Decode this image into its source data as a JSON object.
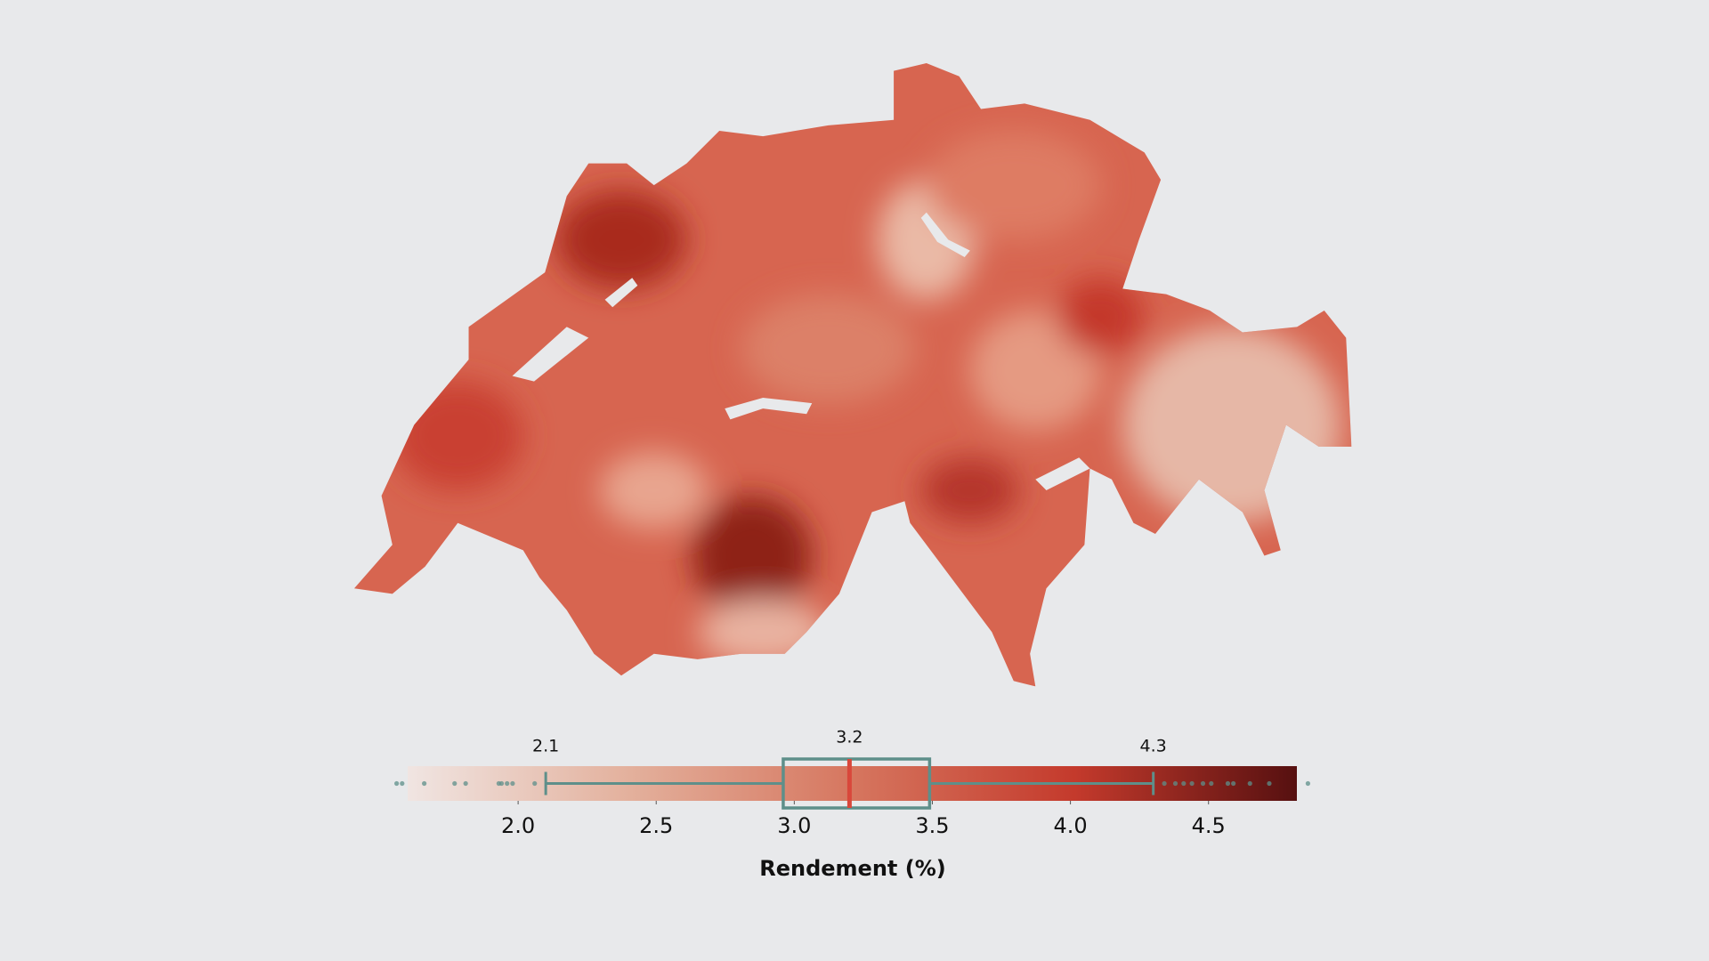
{
  "chart_data": {
    "type": "boxplot",
    "xlabel": "Rendement (%)",
    "xlim": [
      1.6,
      4.82
    ],
    "xticks": [
      {
        "value": 2,
        "label": "2.0"
      },
      2.5,
      {
        "value": 3,
        "label": "3.0"
      },
      3.5,
      {
        "value": 4,
        "label": "4.0"
      },
      4.5
    ],
    "whisker_low": 2.1,
    "q1": 2.96,
    "median": 3.2,
    "q3": 3.49,
    "whisker_high": 4.3,
    "outliers": [
      1.56,
      1.58,
      1.66,
      1.77,
      1.81,
      1.93,
      1.94,
      1.96,
      1.98,
      2.06,
      4.34,
      4.38,
      4.41,
      4.44,
      4.48,
      4.51,
      4.57,
      4.59,
      4.65,
      4.72,
      4.86
    ],
    "colorscale": [
      "#f0e5e2",
      "#e3b09c",
      "#d6765f",
      "#c43a2c",
      "#561010"
    ],
    "box_color": "#5e8f8a",
    "median_color": "#d9473b"
  }
}
